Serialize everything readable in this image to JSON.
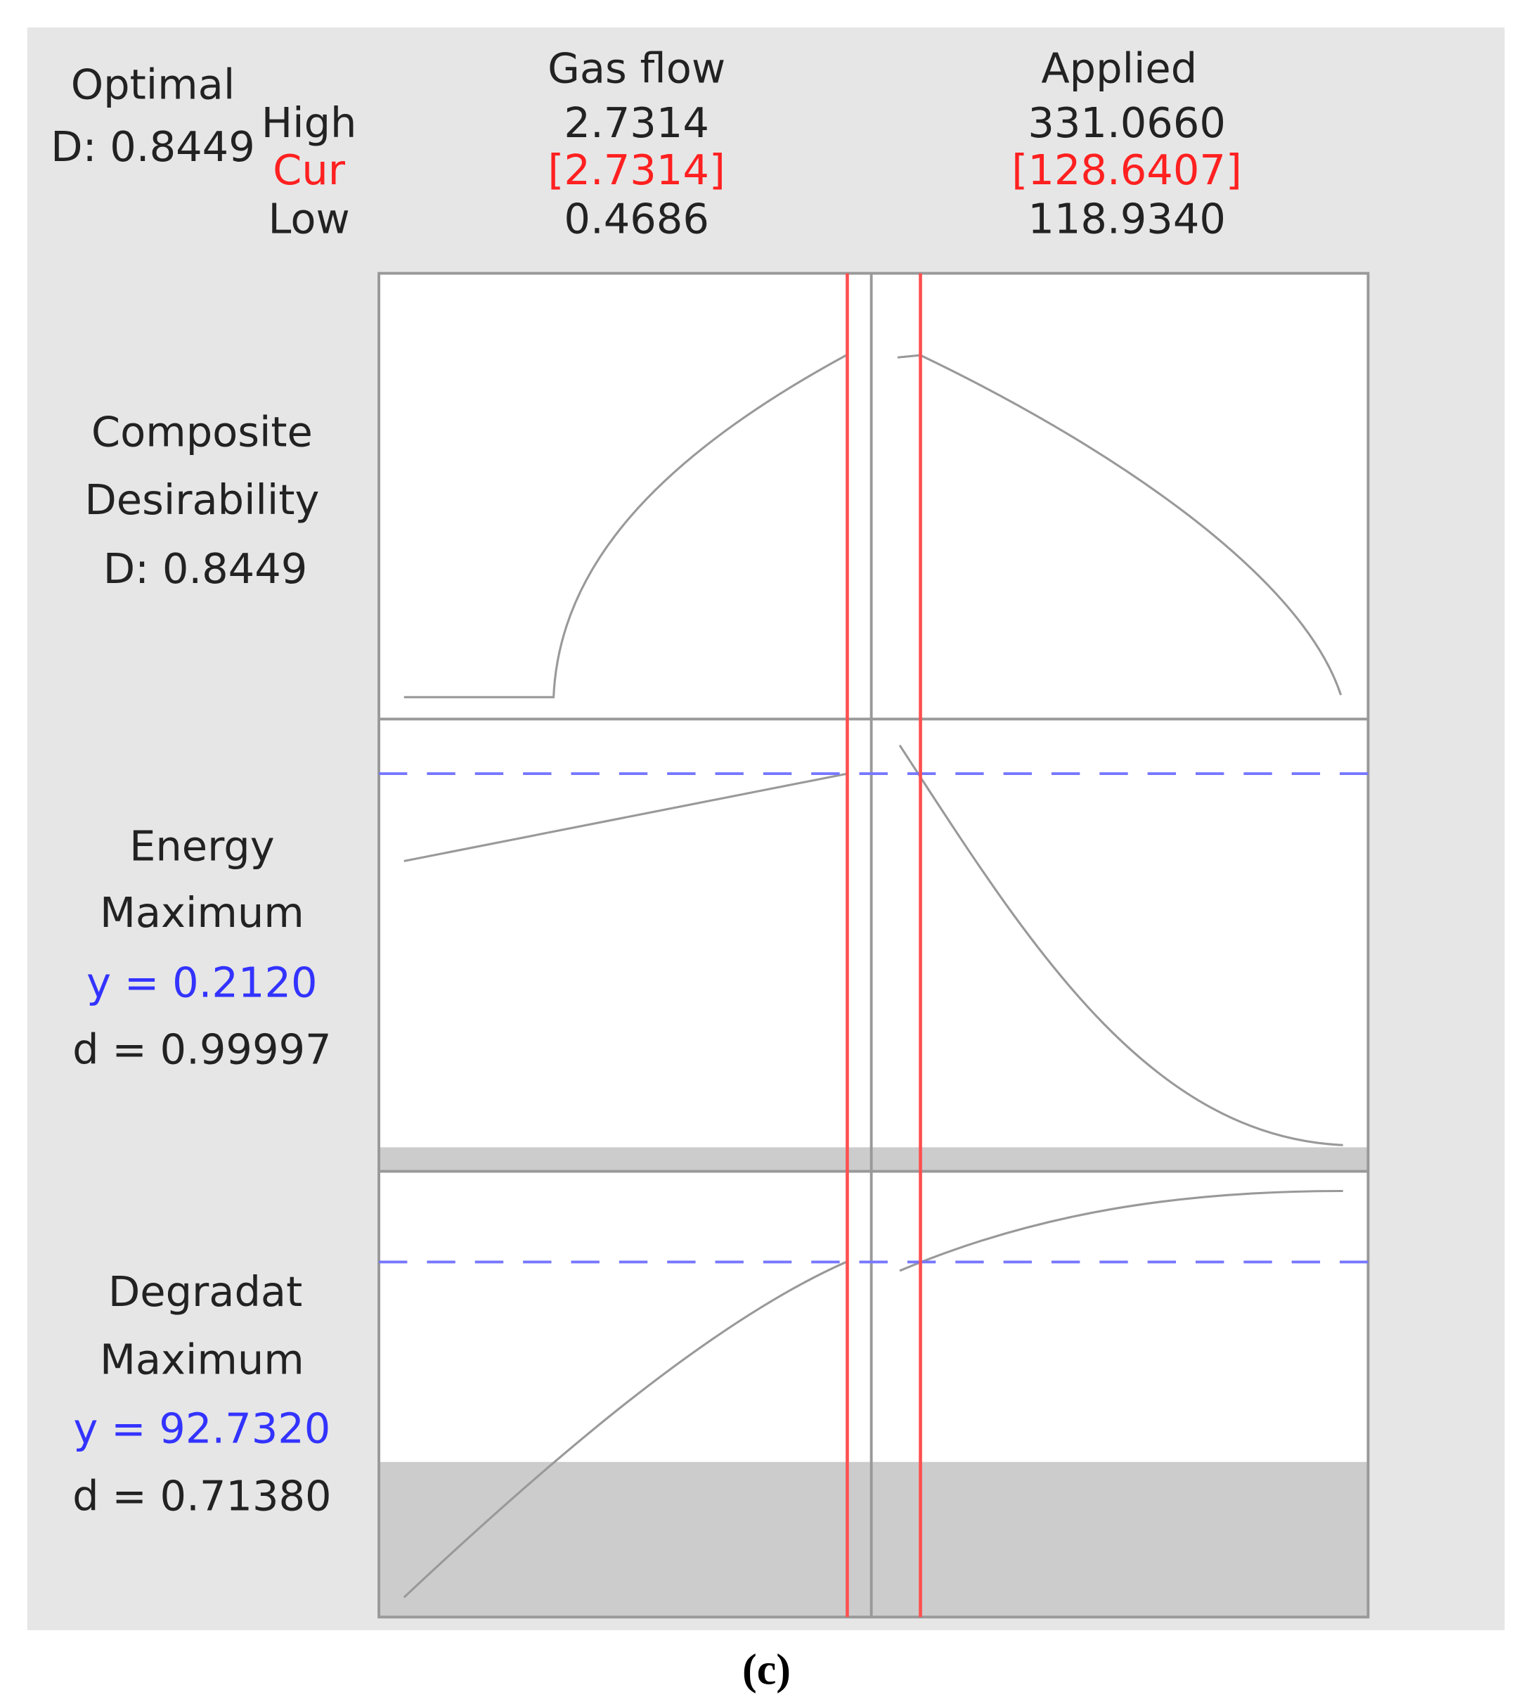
{
  "header": {
    "optimal": "Optimal",
    "optimal_d": "D: 0.8449",
    "high": "High",
    "cur": "Cur",
    "low": "Low"
  },
  "factors": [
    {
      "name": "Gas flow",
      "high": "2.7314",
      "cur": "[2.7314]",
      "low": "0.4686"
    },
    {
      "name": "Applied",
      "high": "331.0660",
      "cur": "[128.6407]",
      "low": "118.9340"
    }
  ],
  "rows": [
    {
      "lines": [
        "Composite",
        "Desirability",
        "D: 0.8449"
      ]
    },
    {
      "lines": [
        "Energy",
        "Maximum"
      ],
      "y": "y = 0.2120",
      "d": "d = 0.99997"
    },
    {
      "lines": [
        "Degradat",
        "Maximum"
      ],
      "y": "y = 92.7320",
      "d": "d = 0.71380"
    }
  ],
  "caption": "(c)"
}
